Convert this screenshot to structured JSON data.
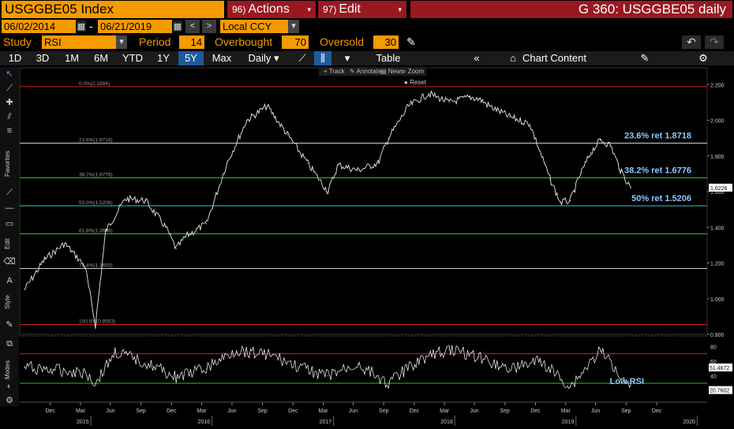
{
  "header": {
    "ticker": "USGGBE05 Index",
    "actions": {
      "num": "96)",
      "label": "Actions"
    },
    "edit": {
      "num": "97)",
      "label": "Edit"
    },
    "graph_title": "G 360: USGGBE05 daily"
  },
  "dates": {
    "start": "06/02/2014",
    "sep": "-",
    "end": "06/21/2019",
    "currency": "Local CCY"
  },
  "study": {
    "label": "Study",
    "value": "RSI",
    "period_label": "Period",
    "period": "14",
    "overbought_label": "Overbought",
    "overbought": "70",
    "oversold_label": "Oversold",
    "oversold": "30"
  },
  "toolbar": {
    "ranges": [
      "1D",
      "3D",
      "1M",
      "6M",
      "YTD",
      "1Y",
      "5Y",
      "Max"
    ],
    "selected": "5Y",
    "frequency": "Daily",
    "table": "Table",
    "chart_content": "Chart Content"
  },
  "chart_menu": {
    "track": "Track",
    "annotate": "Annotate",
    "news": "News",
    "zoom": "Zoom",
    "reset": "Reset"
  },
  "side_labels": {
    "favorites": "Favorites",
    "edit": "Edit",
    "style": "Style",
    "modes": "Modes"
  },
  "colors": {
    "price": "#e8e8e8",
    "fib_red": "#d02020",
    "fib_white": "#cfcfcf",
    "fib_green": "#2ec02e",
    "fib_cyan": "#28c8d0",
    "rsi": "#ffffff",
    "ob": "#d02020",
    "os": "#2ec02e",
    "annot": "#8ec8ff",
    "accent_orange": "#f59a00",
    "select_blue": "#1f5a9c"
  },
  "chart_data": [
    {
      "type": "line",
      "title": "USGGBE05 daily",
      "ylim": [
        0.8,
        2.25
      ],
      "y_ticks": [
        "2.200",
        "2.000",
        "1.800",
        "1.600",
        "1.400",
        "1.200",
        "1.000",
        "0.800"
      ],
      "last_value": "1.6226",
      "x_months": [
        "Dec",
        "Mar",
        "Jun",
        "Sep",
        "Dec",
        "Mar",
        "Jun",
        "Sep",
        "Dec",
        "Mar",
        "Jun",
        "Sep",
        "Dec",
        "Mar",
        "Jun",
        "Sep",
        "Dec",
        "Mar",
        "Jun",
        "Sep",
        "Dec"
      ],
      "x_years": [
        "2015",
        "2016",
        "2017",
        "2018",
        "2019",
        "2020"
      ],
      "series": [
        {
          "x": [
            "2014-06",
            "2014-08",
            "2014-10",
            "2014-12",
            "2015-01",
            "2015-02",
            "2015-04",
            "2015-06",
            "2015-08",
            "2015-09",
            "2015-10",
            "2015-12",
            "2016-02",
            "2016-04",
            "2016-06",
            "2016-08",
            "2016-10",
            "2016-12",
            "2017-01",
            "2017-03",
            "2017-05",
            "2017-06",
            "2017-08",
            "2017-10",
            "2017-12",
            "2018-02",
            "2018-03",
            "2018-04",
            "2018-06",
            "2018-08",
            "2018-10",
            "2018-11",
            "2018-12",
            "2019-01",
            "2019-02",
            "2019-03",
            "2019-04",
            "2019-05",
            "2019-06"
          ],
          "values": [
            1.05,
            1.22,
            1.31,
            1.18,
            0.85,
            1.38,
            1.56,
            1.55,
            1.4,
            1.28,
            1.35,
            1.42,
            1.76,
            2.0,
            2.08,
            1.92,
            1.76,
            1.6,
            1.75,
            1.72,
            1.76,
            1.9,
            2.08,
            2.15,
            2.1,
            2.13,
            2.12,
            2.08,
            2.02,
            1.98,
            1.67,
            1.54,
            1.55,
            1.7,
            1.82,
            1.89,
            1.86,
            1.72,
            1.62
          ]
        }
      ],
      "fib_levels": [
        {
          "label": "0.0%(2.1884)",
          "value": 2.1884
        },
        {
          "label": "23.6%(1.8718)",
          "value": 1.8718
        },
        {
          "label": "38.2%(1.6776)",
          "value": 1.6776
        },
        {
          "label": "50.0%(1.5206)",
          "value": 1.5206
        },
        {
          "label": "61.8%(1.3636)",
          "value": 1.3636
        },
        {
          "label": "76.4%(1.1693)",
          "value": 1.1693
        },
        {
          "label": "100.0%(0.8553)",
          "value": 0.8553
        }
      ],
      "annotations": [
        {
          "text": "23.6% ret 1.8718",
          "value": 1.8718
        },
        {
          "text": "38.2% ret 1.6776",
          "value": 1.6776
        },
        {
          "text": "50% ret 1.5206",
          "value": 1.5206
        }
      ]
    },
    {
      "type": "line",
      "title": "RSI",
      "ylim": [
        15,
        90
      ],
      "y_ticks": [
        "80",
        "60",
        "40"
      ],
      "last_values": [
        "51.4672",
        "20.7602"
      ],
      "overbought": 70,
      "oversold": 30,
      "annotation": "Low RSI",
      "series": [
        {
          "x": [
            "2014-06",
            "2014-09",
            "2014-12",
            "2015-01",
            "2015-03",
            "2015-06",
            "2015-09",
            "2015-12",
            "2016-03",
            "2016-06",
            "2016-09",
            "2016-12",
            "2017-03",
            "2017-06",
            "2017-09",
            "2017-12",
            "2018-03",
            "2018-06",
            "2018-09",
            "2018-12",
            "2019-03",
            "2019-06"
          ],
          "values": [
            52,
            48,
            45,
            30,
            72,
            58,
            38,
            50,
            75,
            70,
            52,
            40,
            56,
            30,
            62,
            76,
            66,
            50,
            60,
            25,
            74,
            28
          ]
        }
      ]
    }
  ]
}
